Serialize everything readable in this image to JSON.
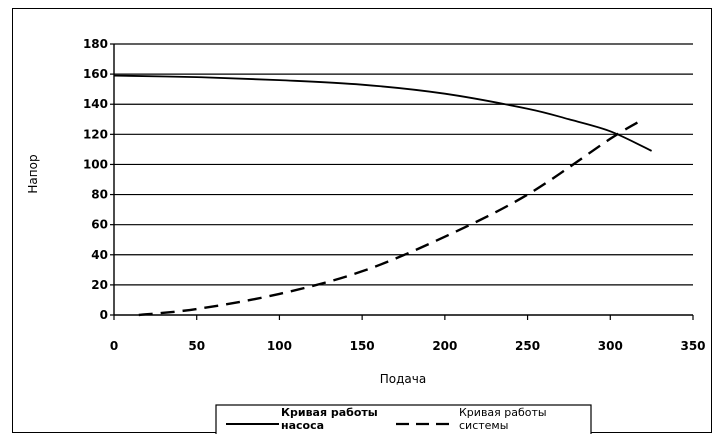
{
  "chart_data": {
    "type": "line",
    "title": "",
    "xlabel": "Подача",
    "ylabel": "Напор",
    "xlim": [
      0,
      350
    ],
    "ylim": [
      0,
      180
    ],
    "xticks": [
      0,
      50,
      100,
      150,
      200,
      250,
      300,
      350
    ],
    "yticks": [
      0,
      20,
      40,
      60,
      80,
      100,
      120,
      140,
      160,
      180
    ],
    "grid": "horizontal",
    "legend_position": "bottom",
    "series": [
      {
        "name_lines": [
          "Кривая работы",
          "насоса"
        ],
        "style": "solid",
        "color": "#000000",
        "x": [
          0,
          50,
          100,
          150,
          200,
          250,
          275,
          300,
          325
        ],
        "y": [
          159,
          158,
          156,
          153,
          147,
          137,
          130,
          122,
          109
        ]
      },
      {
        "name_lines": [
          "Кривая работы",
          "системы"
        ],
        "style": "dashed",
        "color": "#000000",
        "x": [
          15,
          50,
          100,
          150,
          200,
          250,
          300,
          320
        ],
        "y": [
          0,
          4,
          14,
          29,
          52,
          80,
          117,
          130
        ]
      }
    ]
  }
}
